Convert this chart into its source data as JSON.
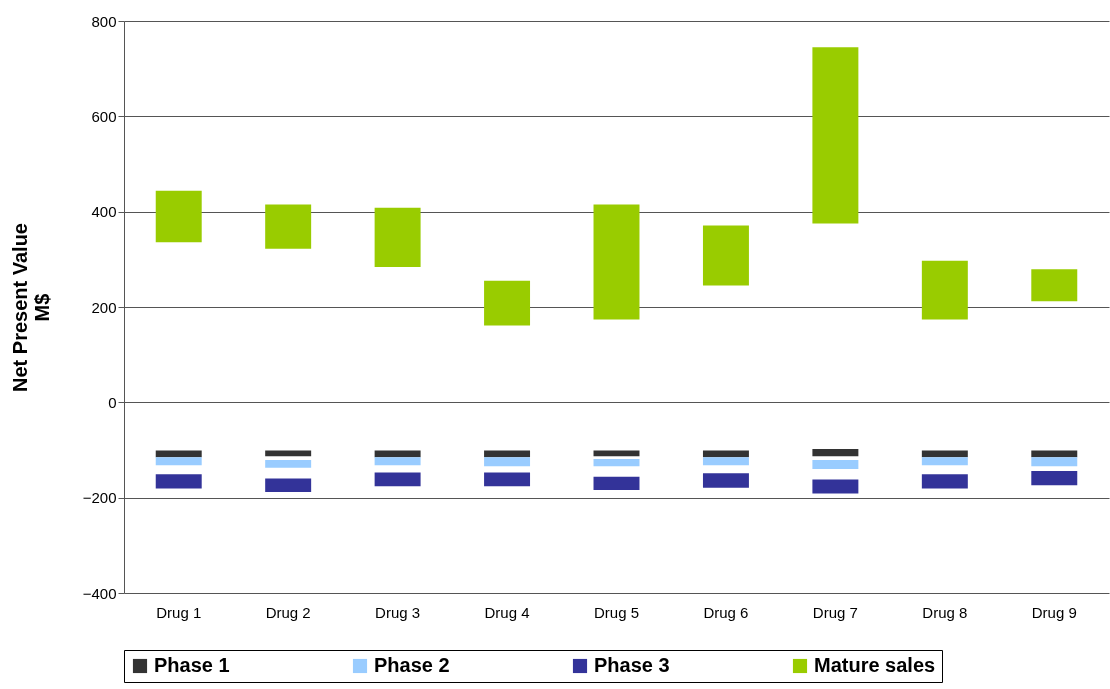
{
  "chart_data": {
    "type": "bar",
    "categories": [
      "Drug 1",
      "Drug 2",
      "Drug 3",
      "Drug 4",
      "Drug 5",
      "Drug 6",
      "Drug 7",
      "Drug 8",
      "Drug 9"
    ],
    "ylabel": "Net Present Value\nM$",
    "series": [
      {
        "name": "Phase 1",
        "color": "#333333",
        "base": [
          -101,
          -101,
          -101,
          -101,
          -101,
          -101,
          -98,
          -101,
          -101
        ],
        "values": [
          -14,
          -12,
          -14,
          -14,
          -12,
          -14,
          -15,
          -14,
          -14
        ]
      },
      {
        "name": "Phase 2",
        "color": "#99ccff",
        "base": [
          -115,
          -121,
          -115,
          -115,
          -119,
          -115,
          -121,
          -115,
          -115
        ],
        "values": [
          -17,
          -16,
          -17,
          -19,
          -15,
          -17,
          -19,
          -17,
          -19
        ]
      },
      {
        "name": "Phase 3",
        "color": "#333399",
        "base": [
          -151,
          -160,
          -147,
          -147,
          -156,
          -149,
          -162,
          -151,
          -144
        ],
        "values": [
          -30,
          -28,
          -29,
          -29,
          -28,
          -30,
          -29,
          -30,
          -30
        ]
      },
      {
        "name": "Mature sales",
        "color": "#99cc00",
        "base": [
          336,
          322,
          284,
          161,
          174,
          245,
          375,
          174,
          212
        ],
        "values": [
          108,
          93,
          124,
          94,
          241,
          126,
          370,
          123,
          67
        ]
      }
    ],
    "ylim": [
      -400,
      800
    ],
    "yticks": [
      -400,
      -200,
      0,
      200,
      400,
      600,
      800
    ],
    "grid": "y",
    "legend": "bottom"
  }
}
